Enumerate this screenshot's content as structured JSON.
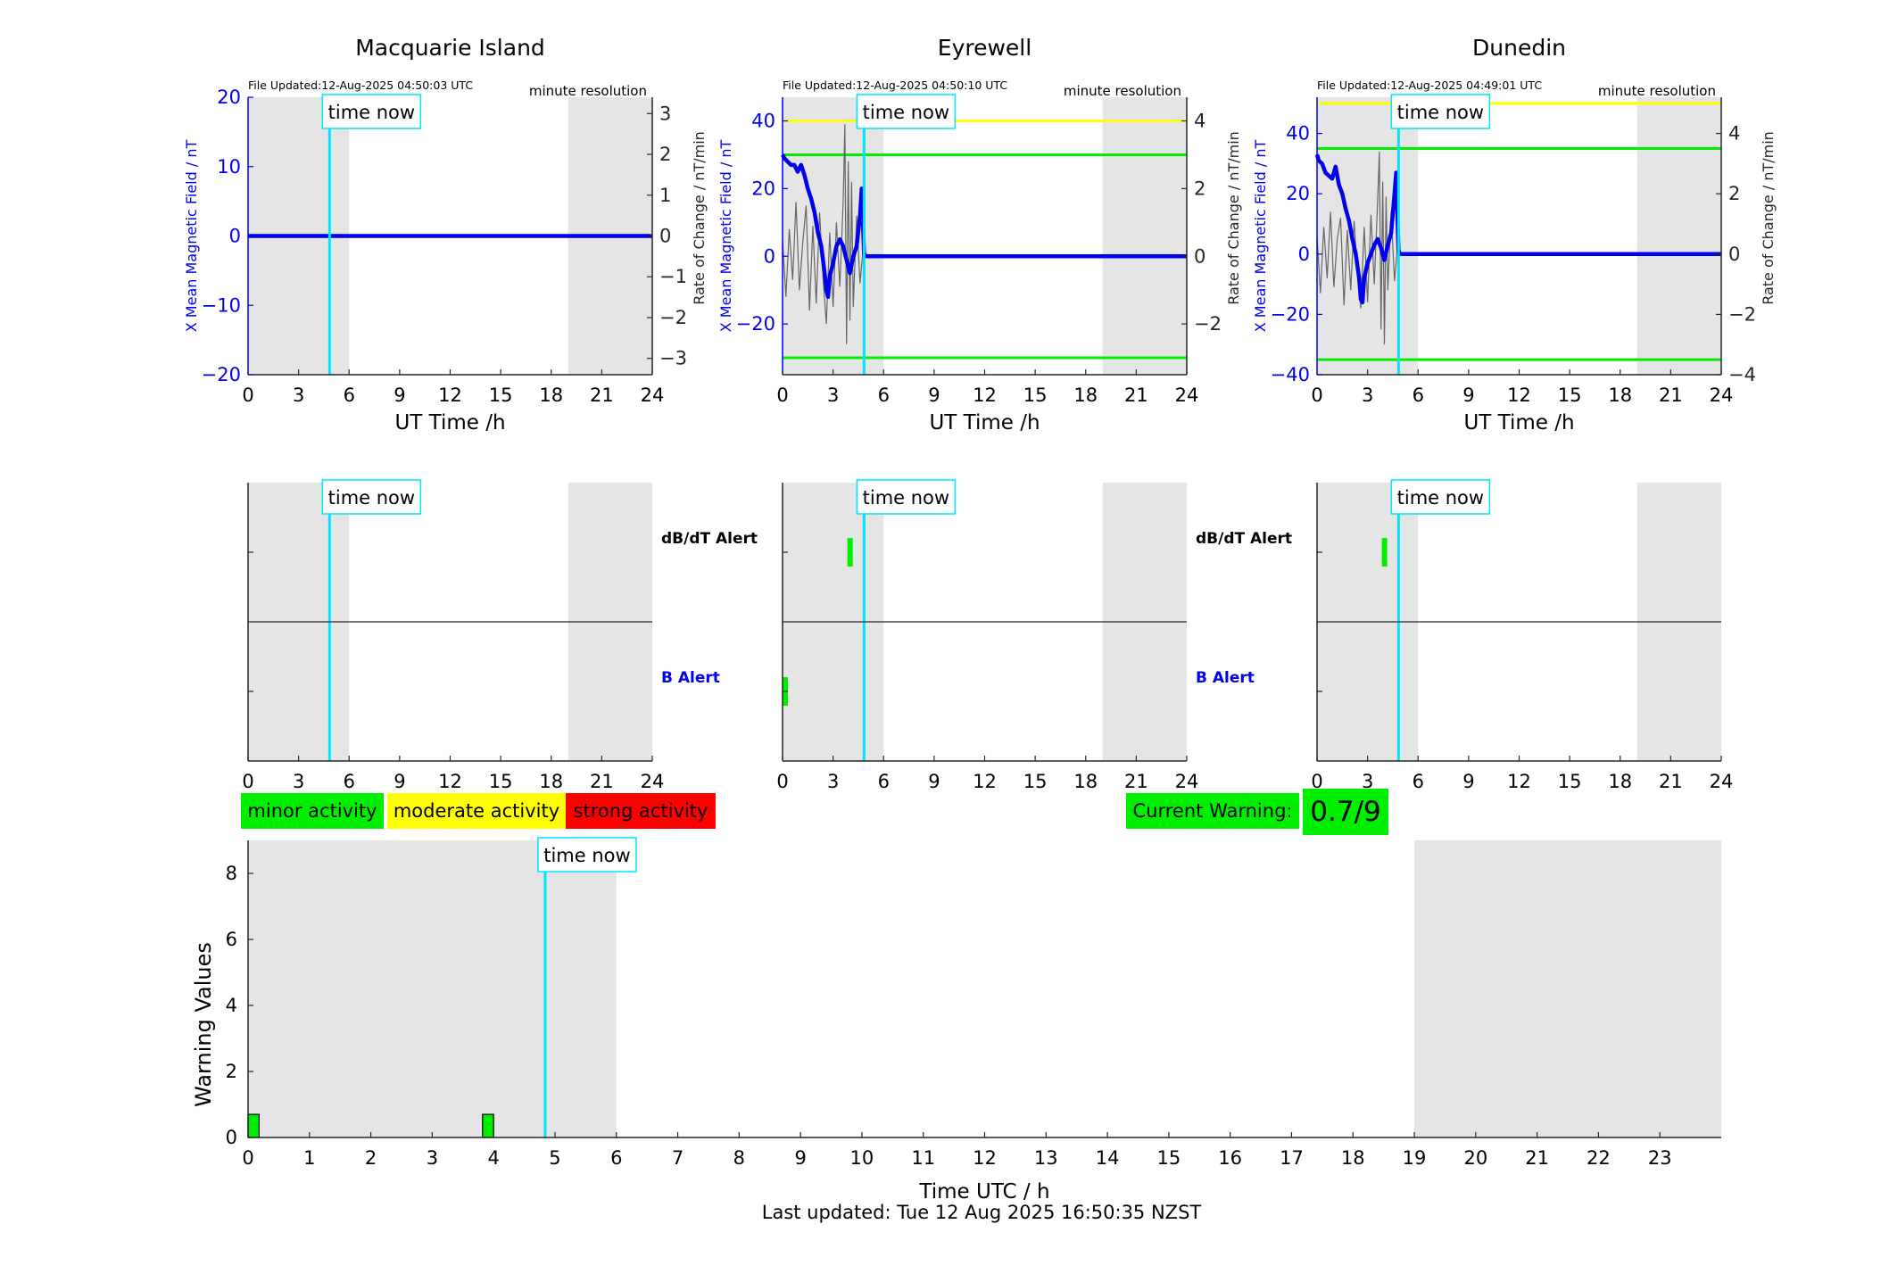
{
  "figure_footer": "Last updated: Tue 12 Aug 2025 16:50:35 NZST",
  "common": {
    "time_now_label": "time now",
    "resolution_label": "minute resolution",
    "x_label_top": "UT Time /h",
    "y_label_left": "X Mean Magnetic Field / nT",
    "y_label_right": "Rate of Change / nT/min",
    "dbdt_alert_label": "dB/dT Alert",
    "b_alert_label": "B Alert",
    "time_now_hour": 4.84,
    "night_shading_hours": [
      [
        0,
        6
      ],
      [
        19,
        24
      ]
    ]
  },
  "colors": {
    "field_line": "#0000ee",
    "rate_line": "#666666",
    "time_now": "#00e5ff",
    "shade": "#e5e5e5",
    "minor": "#00ee00",
    "moderate": "#ffff00",
    "strong": "#ff0000",
    "left_axis": "#0000ee",
    "b_alert_text": "#0000ee"
  },
  "legend": {
    "minor": "minor activity",
    "moderate": "moderate activity",
    "strong": "strong activity"
  },
  "current_warning": {
    "label": "Current Warning:",
    "value": "0.7/9"
  },
  "chart_data": [
    {
      "type": "line",
      "title": "Macquarie Island",
      "file_updated": "File Updated:12-Aug-2025 04:50:03 UTC",
      "xlabel": "UT Time /h",
      "ylabel": "X Mean Magnetic Field / nT",
      "ylabel_right": "Rate of Change / nT/min",
      "xlim": [
        0,
        24
      ],
      "xticks": [
        0,
        3,
        6,
        9,
        12,
        15,
        18,
        21,
        24
      ],
      "ylim": [
        -20,
        20
      ],
      "yticks": [
        -20,
        -10,
        0,
        10,
        20
      ],
      "ylim_right": [
        -3.4,
        3.4
      ],
      "yticks_right": [
        -3,
        -2,
        -1,
        0,
        1,
        2,
        3
      ],
      "threshold_lines": [],
      "series": [
        {
          "x": [
            0,
            24
          ],
          "y": [
            0,
            0
          ]
        }
      ],
      "rate_series": [
        {
          "x": [
            0,
            24
          ],
          "y": [
            0,
            0
          ]
        }
      ],
      "alerts": {
        "dbdt": [],
        "b": []
      }
    },
    {
      "type": "line",
      "title": "Eyrewell",
      "file_updated": "File Updated:12-Aug-2025 04:50:10 UTC",
      "xlabel": "UT Time /h",
      "ylabel": "X Mean Magnetic Field / nT",
      "ylabel_right": "Rate of Change / nT/min",
      "xlim": [
        0,
        24
      ],
      "xticks": [
        0,
        3,
        6,
        9,
        12,
        15,
        18,
        21,
        24
      ],
      "ylim": [
        -35,
        47
      ],
      "yticks": [
        -20,
        0,
        20,
        40
      ],
      "ylim_right": [
        -3.5,
        4.7
      ],
      "yticks_right": [
        -2,
        0,
        2,
        4
      ],
      "threshold_lines": [
        {
          "y": 40,
          "color": "#ffff00"
        },
        {
          "y": 30,
          "color": "#00ee00"
        },
        {
          "y": -30,
          "color": "#00ee00"
        }
      ],
      "series": [
        {
          "x": [
            0,
            0.1,
            0.3,
            0.5,
            0.7,
            0.9,
            1.1,
            1.3,
            1.5,
            1.7,
            1.9,
            2.1,
            2.3,
            2.5,
            2.6,
            2.7,
            2.8,
            3.0,
            3.2,
            3.4,
            3.6,
            3.8,
            4.0,
            4.2,
            4.4,
            4.6,
            4.7,
            4.84,
            5.0,
            24
          ],
          "y": [
            30,
            29,
            28,
            27,
            27,
            25,
            27,
            24,
            20,
            17,
            13,
            7,
            3,
            -5,
            -10,
            -12,
            -6,
            -2,
            3,
            5,
            3,
            -1,
            -5,
            0,
            3,
            12,
            20,
            0.5,
            0,
            0
          ]
        }
      ],
      "rate_series": [
        {
          "x": [
            0,
            0.2,
            0.4,
            0.6,
            0.8,
            1.0,
            1.2,
            1.4,
            1.6,
            1.8,
            2.0,
            2.2,
            2.4,
            2.6,
            2.8,
            3.0,
            3.2,
            3.4,
            3.6,
            3.7,
            3.8,
            3.9,
            4.0,
            4.1,
            4.2,
            4.4,
            4.6,
            4.8,
            5.0,
            24
          ],
          "y": [
            0.5,
            -1.2,
            0.8,
            -0.7,
            1.6,
            -1.0,
            0.4,
            1.5,
            -1.6,
            0.9,
            -1.4,
            1.3,
            -0.6,
            -2.0,
            0.7,
            -1.5,
            1.0,
            -0.9,
            1.6,
            3.9,
            -2.6,
            2.8,
            -1.9,
            2.2,
            -1.5,
            1.2,
            -0.8,
            0.3,
            0,
            0
          ]
        }
      ],
      "alerts": {
        "dbdt": [
          {
            "start": 3.85,
            "end": 4.05
          }
        ],
        "b": [
          {
            "start": 0.0,
            "end": 0.25
          }
        ]
      }
    },
    {
      "type": "line",
      "title": "Dunedin",
      "file_updated": "File Updated:12-Aug-2025 04:49:01 UTC",
      "xlabel": "UT Time /h",
      "ylabel": "X Mean Magnetic Field / nT",
      "ylabel_right": "Rate of Change / nT/min",
      "xlim": [
        0,
        24
      ],
      "xticks": [
        0,
        3,
        6,
        9,
        12,
        15,
        18,
        21,
        24
      ],
      "ylim": [
        -40,
        52
      ],
      "yticks": [
        -40,
        -20,
        0,
        20,
        40
      ],
      "ylim_right": [
        -4,
        5.2
      ],
      "yticks_right": [
        -4,
        -2,
        0,
        2,
        4
      ],
      "threshold_lines": [
        {
          "y": 50,
          "color": "#ffff00"
        },
        {
          "y": 35,
          "color": "#00ee00"
        },
        {
          "y": -35,
          "color": "#00ee00"
        }
      ],
      "series": [
        {
          "x": [
            0,
            0.1,
            0.3,
            0.5,
            0.7,
            0.9,
            1.1,
            1.3,
            1.5,
            1.7,
            1.9,
            2.1,
            2.3,
            2.5,
            2.6,
            2.7,
            2.8,
            3.0,
            3.2,
            3.4,
            3.6,
            3.8,
            4.0,
            4.2,
            4.4,
            4.6,
            4.7,
            4.84,
            5.0,
            24
          ],
          "y": [
            33,
            31,
            30,
            27,
            26,
            25,
            29,
            23,
            20,
            15,
            11,
            5,
            0,
            -8,
            -15,
            -16,
            -8,
            -3,
            0,
            3,
            5,
            2,
            -2,
            3,
            7,
            20,
            27,
            0.5,
            0,
            0
          ]
        }
      ],
      "rate_series": [
        {
          "x": [
            0,
            0.2,
            0.4,
            0.6,
            0.8,
            1.0,
            1.2,
            1.4,
            1.6,
            1.8,
            2.0,
            2.2,
            2.4,
            2.6,
            2.8,
            3.0,
            3.2,
            3.4,
            3.6,
            3.7,
            3.8,
            3.9,
            4.0,
            4.1,
            4.2,
            4.4,
            4.6,
            4.8,
            5.0,
            24
          ],
          "y": [
            0.6,
            -1.3,
            0.9,
            -0.8,
            1.4,
            -1.1,
            0.5,
            1.2,
            -1.7,
            0.8,
            -1.2,
            1.1,
            -0.7,
            -1.8,
            0.9,
            -1.6,
            1.3,
            -1.0,
            1.8,
            3.4,
            -2.5,
            2.4,
            -3.0,
            1.9,
            -1.2,
            1.4,
            -0.9,
            0.4,
            0,
            0
          ]
        }
      ],
      "alerts": {
        "dbdt": [
          {
            "start": 3.85,
            "end": 4.05
          }
        ],
        "b": []
      }
    },
    {
      "type": "bar",
      "xlabel": "Time UTC / h",
      "ylabel": "Warning Values",
      "xlim": [
        0,
        24
      ],
      "xticks": [
        0,
        1,
        2,
        3,
        4,
        5,
        6,
        7,
        8,
        9,
        10,
        11,
        12,
        13,
        14,
        15,
        16,
        17,
        18,
        19,
        20,
        21,
        22,
        23
      ],
      "ylim": [
        0,
        9
      ],
      "yticks": [
        0,
        2,
        4,
        6,
        8
      ],
      "bars": [
        {
          "x": 0.0,
          "width": 0.18,
          "value": 0.7,
          "color": "#00ee00"
        },
        {
          "x": 3.82,
          "width": 0.18,
          "value": 0.7,
          "color": "#00ee00"
        }
      ],
      "time_now_hour": 4.84,
      "night_shading_hours": [
        [
          0,
          6
        ],
        [
          19,
          24
        ]
      ]
    }
  ]
}
